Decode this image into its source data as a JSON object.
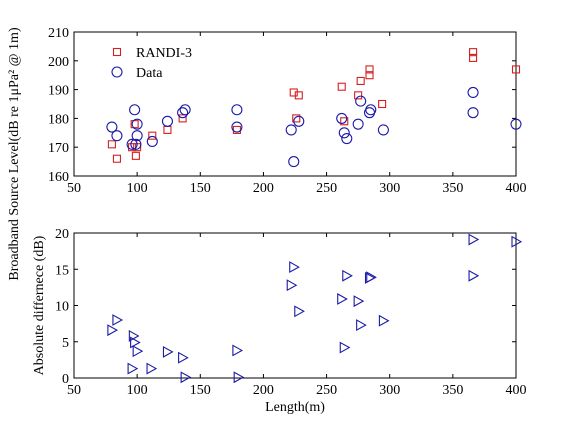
{
  "figure": {
    "shared_ylabel": "Broadband Source Level(dB re 1μPa² @ 1m)"
  },
  "colors": {
    "randi": "#d62020",
    "data": "#1a1aa8",
    "axis": "#000000"
  },
  "chart_data": [
    {
      "type": "scatter",
      "xlim": [
        50,
        400
      ],
      "ylim": [
        160,
        210
      ],
      "xticks": [
        50,
        100,
        150,
        200,
        250,
        300,
        350,
        400
      ],
      "yticks": [
        160,
        170,
        180,
        190,
        200,
        210
      ],
      "xlabel": "",
      "ylabel": "",
      "legend_position": "top-left",
      "series": [
        {
          "name": "RANDI-3",
          "marker": "square",
          "x": [
            80,
            84,
            96,
            98,
            99,
            100,
            112,
            124,
            136,
            179,
            224,
            226,
            228,
            262,
            264,
            275,
            277,
            284,
            284,
            294,
            366,
            366,
            400
          ],
          "y": [
            171,
            166,
            170,
            178,
            167,
            170,
            174,
            176,
            180,
            176,
            189,
            180,
            188,
            191,
            179,
            188,
            193,
            195,
            197,
            185,
            201,
            203,
            197
          ]
        },
        {
          "name": "Data",
          "marker": "circle",
          "x": [
            80,
            84,
            96,
            98,
            99,
            100,
            100,
            112,
            124,
            136,
            138,
            179,
            179,
            222,
            224,
            228,
            262,
            264,
            266,
            275,
            277,
            284,
            285,
            295,
            366,
            366,
            400
          ],
          "y": [
            177,
            174,
            171,
            183,
            171,
            174,
            178,
            172,
            179,
            182,
            183,
            177,
            183,
            176,
            165,
            179,
            180,
            175,
            173,
            178,
            186,
            182,
            183,
            176,
            182,
            189,
            178
          ]
        }
      ]
    },
    {
      "type": "scatter",
      "xlim": [
        50,
        400
      ],
      "ylim": [
        0,
        20
      ],
      "xticks": [
        50,
        100,
        150,
        200,
        250,
        300,
        350,
        400
      ],
      "yticks": [
        0,
        5,
        10,
        15,
        20
      ],
      "xlabel": "Length(m)",
      "ylabel": "Absolute differnece (dB)",
      "series": [
        {
          "marker": "triangle-right",
          "x": [
            80,
            84,
            96,
            97,
            98,
            100,
            111,
            124,
            136,
            138,
            179,
            180,
            222,
            224,
            228,
            262,
            264,
            266,
            275,
            277,
            284,
            285,
            295,
            366,
            366,
            400
          ],
          "y": [
            6.6,
            8.0,
            1.3,
            5.8,
            4.9,
            3.7,
            1.3,
            3.6,
            2.8,
            0.1,
            3.8,
            0.1,
            12.8,
            15.3,
            9.2,
            10.9,
            4.2,
            14.1,
            10.6,
            7.3,
            13.8,
            13.9,
            7.9,
            19.1,
            14.1,
            18.8
          ]
        }
      ]
    }
  ]
}
